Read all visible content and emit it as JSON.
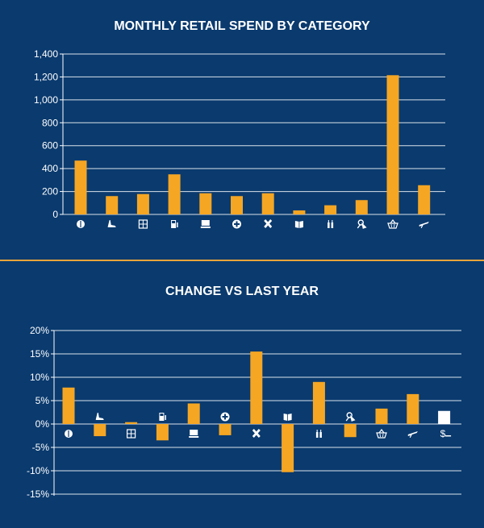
{
  "colors": {
    "background": "#0a3a6e",
    "bar": "#f5a623",
    "highlight_bar": "#ffffff",
    "divider": "#e8a33a",
    "text": "#ffffff"
  },
  "chart_data": [
    {
      "type": "bar",
      "title": "MONTHLY RETAIL SPEND BY CATEGORY",
      "xlabel": "",
      "ylabel": "",
      "ylim": [
        0,
        1400
      ],
      "yticks": [
        0,
        200,
        400,
        600,
        800,
        1000,
        1200,
        1400
      ],
      "ytick_labels": [
        "0",
        "200",
        "400",
        "600",
        "800",
        "1,000",
        "1,200",
        "1,400"
      ],
      "grid": true,
      "categories": [
        "dining",
        "clothing",
        "furniture",
        "fuel",
        "electronics",
        "health",
        "home-improvement",
        "books",
        "beverages",
        "personal-care",
        "groceries",
        "travel"
      ],
      "values": [
        470,
        160,
        178,
        350,
        185,
        160,
        185,
        35,
        80,
        125,
        1215,
        255
      ]
    },
    {
      "type": "bar",
      "title": "CHANGE VS LAST YEAR",
      "xlabel": "",
      "ylabel": "",
      "ylim": [
        -15,
        20
      ],
      "yticks": [
        -15,
        -10,
        -5,
        0,
        5,
        10,
        15,
        20
      ],
      "ytick_labels": [
        "-15%",
        "-10%",
        "-5%",
        "0%",
        "5%",
        "10%",
        "15%",
        "20%"
      ],
      "grid": true,
      "categories": [
        "dining",
        "clothing",
        "furniture",
        "fuel",
        "electronics",
        "health",
        "home-improvement",
        "books",
        "beverages",
        "personal-care",
        "groceries",
        "travel",
        "total"
      ],
      "values": [
        7.8,
        -2.6,
        0.4,
        -3.5,
        4.4,
        -2.4,
        15.5,
        -10.3,
        9.0,
        -2.8,
        3.3,
        6.4,
        2.8
      ],
      "highlight_index": 12,
      "total_label": "$"
    }
  ]
}
